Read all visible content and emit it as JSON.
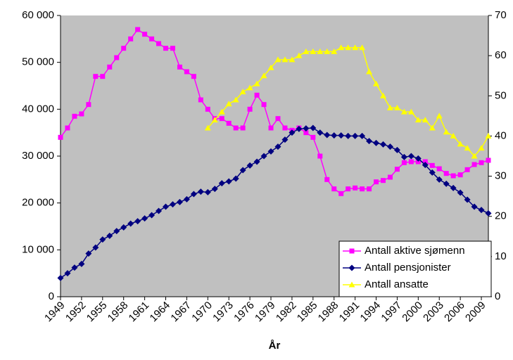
{
  "chart_data": {
    "type": "line",
    "x": [
      1949,
      1950,
      1951,
      1952,
      1953,
      1954,
      1955,
      1956,
      1957,
      1958,
      1959,
      1960,
      1961,
      1962,
      1963,
      1964,
      1965,
      1966,
      1967,
      1968,
      1969,
      1970,
      1971,
      1972,
      1973,
      1974,
      1975,
      1976,
      1977,
      1978,
      1979,
      1980,
      1981,
      1982,
      1983,
      1984,
      1985,
      1986,
      1987,
      1988,
      1989,
      1990,
      1991,
      1992,
      1993,
      1994,
      1995,
      1996,
      1997,
      1998,
      1999,
      2000,
      2001,
      2002,
      2003,
      2004,
      2005,
      2006,
      2007,
      2008,
      2009,
      2010
    ],
    "xlim": [
      1949,
      2010
    ],
    "xticks": [
      1949,
      1952,
      1955,
      1958,
      1961,
      1964,
      1967,
      1970,
      1973,
      1976,
      1979,
      1982,
      1985,
      1988,
      1991,
      1994,
      1997,
      2000,
      2003,
      2006,
      2009
    ],
    "x_label": "År",
    "ylim": [
      0,
      60000
    ],
    "yticks": [
      0,
      {
        "value": 10000,
        "label": "10 000"
      },
      {
        "value": 20000,
        "label": "20 000"
      },
      {
        "value": 30000,
        "label": "30 000"
      },
      {
        "value": 40000,
        "label": "40 000"
      },
      {
        "value": 50000,
        "label": "50 000"
      },
      {
        "value": 60000,
        "label": "60 000"
      }
    ],
    "y2lim": [
      0,
      70
    ],
    "y2ticks": [
      0,
      10,
      20,
      30,
      40,
      50,
      60,
      70
    ],
    "plot_background": "#c0c0c0",
    "legend": "lower right",
    "series": [
      {
        "name": "Antall aktive sjømenn",
        "color": "#ff00ff",
        "marker": "square",
        "values": [
          34000,
          36000,
          38500,
          39000,
          41000,
          47000,
          47000,
          49000,
          51000,
          53000,
          55000,
          57000,
          56000,
          55000,
          54000,
          53000,
          53000,
          49000,
          48000,
          47000,
          42000,
          40000,
          38000,
          38000,
          37000,
          36000,
          36000,
          40000,
          43000,
          41000,
          36000,
          38000,
          36000,
          35500,
          36000,
          35000,
          34000,
          30000,
          25000,
          23000,
          22000,
          23000,
          23200,
          23000,
          23000,
          24500,
          24800,
          25500,
          27200,
          28600,
          28800,
          28800,
          28800,
          28000,
          27300,
          26300,
          25800,
          26000,
          27100,
          28200,
          28600,
          29100
        ]
      },
      {
        "name": "Antall pensjonister",
        "color": "#000080",
        "marker": "diamond",
        "values": [
          4000,
          5000,
          6200,
          7000,
          9200,
          10500,
          12200,
          13000,
          14000,
          14800,
          15600,
          16100,
          16700,
          17400,
          18300,
          19200,
          19700,
          20200,
          20800,
          21900,
          22400,
          22300,
          23000,
          24200,
          24600,
          25200,
          27000,
          28000,
          28800,
          30000,
          31000,
          32000,
          33500,
          35000,
          35800,
          35900,
          36000,
          35000,
          34500,
          34400,
          34400,
          34300,
          34300,
          34300,
          33200,
          32800,
          32500,
          32000,
          31300,
          29800,
          30000,
          29500,
          28100,
          26500,
          25000,
          24100,
          23200,
          22200,
          20700,
          19200,
          18500,
          17800
        ]
      },
      {
        "name": "Antall ansatte",
        "color": "#ffff00",
        "marker": "triangle",
        "axis": "y2",
        "values": [
          null,
          null,
          null,
          null,
          null,
          null,
          null,
          null,
          null,
          null,
          null,
          null,
          null,
          null,
          null,
          null,
          null,
          null,
          null,
          null,
          null,
          42,
          44,
          46,
          48,
          49,
          51,
          52,
          53,
          55,
          57,
          59,
          59,
          59,
          60,
          61,
          61,
          61,
          61,
          61,
          62,
          62,
          62,
          62,
          56,
          53,
          50,
          47,
          47,
          46,
          46,
          44,
          44,
          42,
          45,
          41,
          40,
          38,
          37,
          35,
          37,
          40
        ]
      }
    ]
  }
}
